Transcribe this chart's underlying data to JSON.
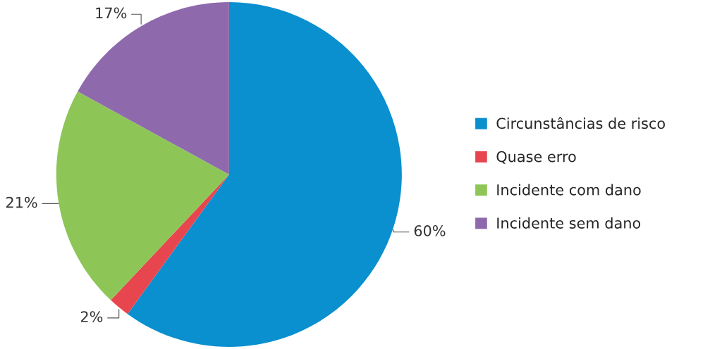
{
  "chart_data": {
    "type": "pie",
    "categories": [
      "Circunstâncias de risco",
      "Quase erro",
      "Incidente com dano",
      "Incidente sem dano"
    ],
    "values": [
      60,
      2,
      21,
      17
    ],
    "value_labels": [
      "60%",
      "2%",
      "21%",
      "17%"
    ],
    "colors": [
      "#0a8fcf",
      "#e8464e",
      "#8dc657",
      "#8e6aad"
    ],
    "legend": "right"
  }
}
